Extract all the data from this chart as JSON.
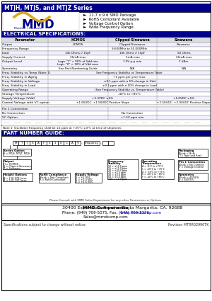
{
  "title": "MTJH, MTJS, and MTJZ Series",
  "title_bg": "#00008B",
  "title_color": "#FFFFFF",
  "bullet_points": [
    "11.7 x 9.6 SMD Package",
    "RoHS Compliant Available",
    "Voltage Control Option",
    "Wide Frequency Range"
  ],
  "elec_spec_title": "ELECTRICAL SPECIFICATIONS:",
  "elec_spec_bg": "#00008B",
  "elec_spec_color": "#FFFFFF",
  "note": "Note 1: Oscillator frequency shall be ±1 ppm at +25°C ±3°C at time of shipment.",
  "part_num_title": "PART NUMBER GUIDE:",
  "footer_box_line1": "MMD Components,  30400 Esperanza, Rancho Santa Margarita, CA. 92688",
  "footer_box_line2": "Phone: (949) 709-5075, Fax: (949) 709-3336,   www.mmdcomp.com",
  "footer_box_line3": "Sales@mmdcomp.com",
  "footer_bottom_left": "Specifications subject to change without notice",
  "footer_bottom_right": "Revision MTRR02990TK",
  "bg_color": "#FFFFFF",
  "watermark_color": "#C5CDD8",
  "dark_blue": "#00008B",
  "table_border": "#888888",
  "row_bg_even": "#F0F0FF",
  "row_bg_odd": "#FFFFFF",
  "header_row_bg": "#DDDDDD"
}
